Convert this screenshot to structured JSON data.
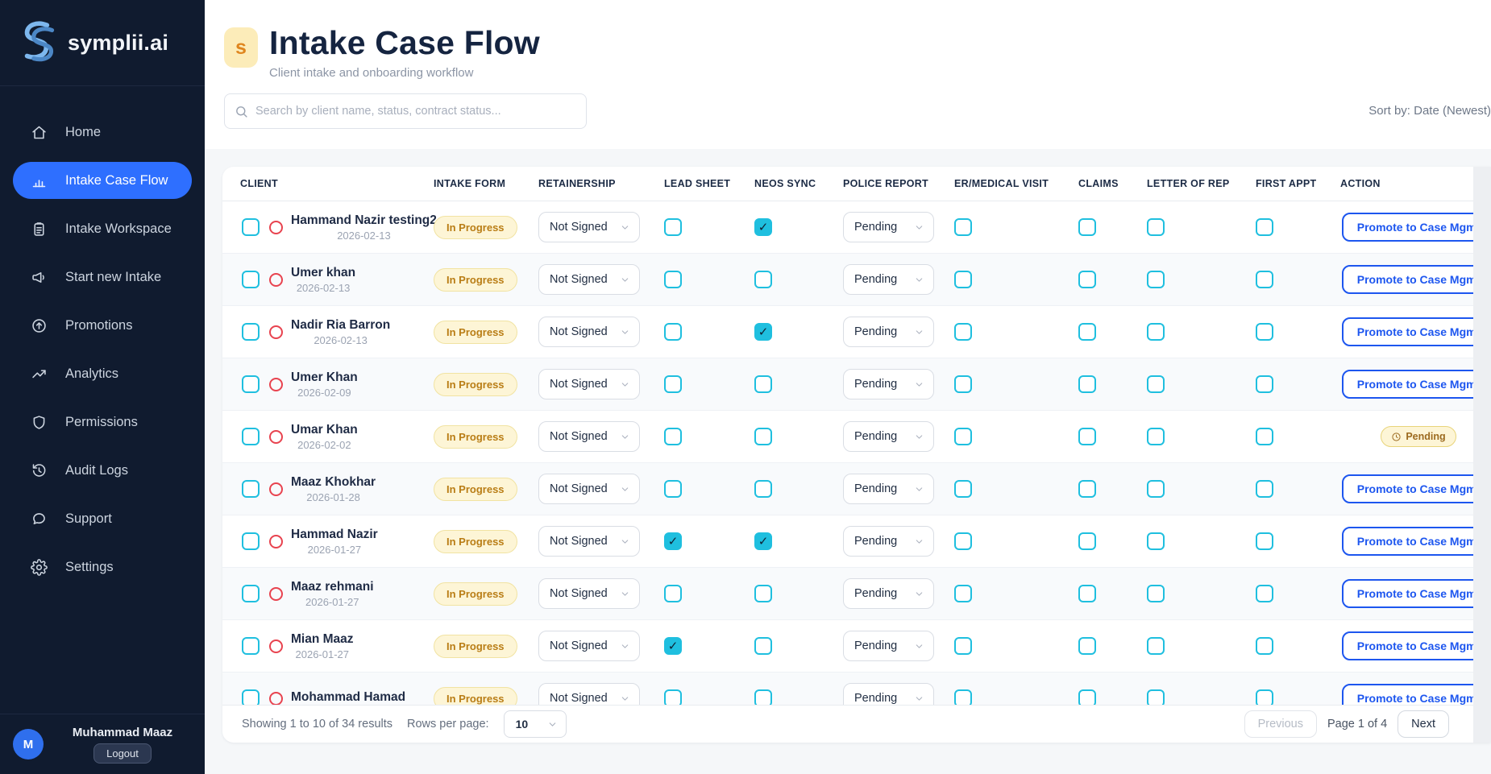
{
  "brand": {
    "name": "symplii.ai"
  },
  "colors": {
    "sidebar_bg": "#101b2f",
    "sidebar_divider": "#1d2940",
    "accent_blue": "#2e6fff",
    "cyan": "#1fbfdf",
    "red_status": "#e8434f",
    "badge_bg": "#fdf5d6",
    "badge_border": "#f1e3a2",
    "badge_text": "#b97d15",
    "button_blue": "#1d56ef",
    "page_gray": "#f5f7f9",
    "title_navy": "#152440"
  },
  "sidebar": {
    "items": [
      {
        "label": "Home",
        "icon": "home",
        "active": false
      },
      {
        "label": "Intake Case Flow",
        "icon": "bar-chart",
        "active": true
      },
      {
        "label": "Intake Workspace",
        "icon": "clipboard",
        "active": false
      },
      {
        "label": "Start new Intake",
        "icon": "megaphone",
        "active": false
      },
      {
        "label": "Promotions",
        "icon": "arrow-up-circle",
        "active": false
      },
      {
        "label": "Analytics",
        "icon": "trending-up",
        "active": false
      },
      {
        "label": "Permissions",
        "icon": "shield",
        "active": false
      },
      {
        "label": "Audit Logs",
        "icon": "history",
        "active": false
      },
      {
        "label": "Support",
        "icon": "chat",
        "active": false
      },
      {
        "label": "Settings",
        "icon": "gear",
        "active": false
      }
    ],
    "user": {
      "initial": "M",
      "name": "Muhammad Maaz",
      "logout_label": "Logout"
    }
  },
  "header": {
    "badge_letter": "s",
    "title": "Intake Case Flow",
    "subtitle": "Client intake and onboarding workflow",
    "search_placeholder": "Search by client name, status, contract status...",
    "sort_label": "Sort by: Date (Newest)"
  },
  "table": {
    "columns": [
      "CLIENT",
      "INTAKE FORM",
      "RETAINERSHIP",
      "LEAD SHEET",
      "NEOS SYNC",
      "POLICE REPORT",
      "ER/MEDICAL VISIT",
      "CLAIMS",
      "LETTER OF REP",
      "FIRST APPT",
      "ACTION"
    ],
    "rows": [
      {
        "name": "Hammand Nazir testing2",
        "date": "2026-02-13",
        "intake_form": "In Progress",
        "retainership": "Not Signed",
        "lead_sheet": false,
        "neos_sync": true,
        "police_report": "Pending",
        "er_medical_visit": false,
        "claims": false,
        "letter_of_rep": false,
        "first_appt": false,
        "action": {
          "type": "button",
          "label": "Promote to Case Mgmt"
        }
      },
      {
        "name": "Umer khan",
        "date": "2026-02-13",
        "intake_form": "In Progress",
        "retainership": "Not Signed",
        "lead_sheet": false,
        "neos_sync": false,
        "police_report": "Pending",
        "er_medical_visit": false,
        "claims": false,
        "letter_of_rep": false,
        "first_appt": false,
        "action": {
          "type": "button",
          "label": "Promote to Case Mgmt"
        }
      },
      {
        "name": "Nadir Ria Barron",
        "date": "2026-02-13",
        "intake_form": "In Progress",
        "retainership": "Not Signed",
        "lead_sheet": false,
        "neos_sync": true,
        "police_report": "Pending",
        "er_medical_visit": false,
        "claims": false,
        "letter_of_rep": false,
        "first_appt": false,
        "action": {
          "type": "button",
          "label": "Promote to Case Mgmt"
        }
      },
      {
        "name": "Umer Khan",
        "date": "2026-02-09",
        "intake_form": "In Progress",
        "retainership": "Not Signed",
        "lead_sheet": false,
        "neos_sync": false,
        "police_report": "Pending",
        "er_medical_visit": false,
        "claims": false,
        "letter_of_rep": false,
        "first_appt": false,
        "action": {
          "type": "button",
          "label": "Promote to Case Mgmt"
        }
      },
      {
        "name": "Umar Khan",
        "date": "2026-02-02",
        "intake_form": "In Progress",
        "retainership": "Not Signed",
        "lead_sheet": false,
        "neos_sync": false,
        "police_report": "Pending",
        "er_medical_visit": false,
        "claims": false,
        "letter_of_rep": false,
        "first_appt": false,
        "action": {
          "type": "badge",
          "label": "Pending"
        }
      },
      {
        "name": "Maaz Khokhar",
        "date": "2026-01-28",
        "intake_form": "In Progress",
        "retainership": "Not Signed",
        "lead_sheet": false,
        "neos_sync": false,
        "police_report": "Pending",
        "er_medical_visit": false,
        "claims": false,
        "letter_of_rep": false,
        "first_appt": false,
        "action": {
          "type": "button",
          "label": "Promote to Case Mgmt"
        }
      },
      {
        "name": "Hammad Nazir",
        "date": "2026-01-27",
        "intake_form": "In Progress",
        "retainership": "Not Signed",
        "lead_sheet": true,
        "neos_sync": true,
        "police_report": "Pending",
        "er_medical_visit": false,
        "claims": false,
        "letter_of_rep": false,
        "first_appt": false,
        "action": {
          "type": "button",
          "label": "Promote to Case Mgmt"
        }
      },
      {
        "name": "Maaz rehmani",
        "date": "2026-01-27",
        "intake_form": "In Progress",
        "retainership": "Not Signed",
        "lead_sheet": false,
        "neos_sync": false,
        "police_report": "Pending",
        "er_medical_visit": false,
        "claims": false,
        "letter_of_rep": false,
        "first_appt": false,
        "action": {
          "type": "button",
          "label": "Promote to Case Mgmt"
        }
      },
      {
        "name": "Mian Maaz",
        "date": "2026-01-27",
        "intake_form": "In Progress",
        "retainership": "Not Signed",
        "lead_sheet": true,
        "neos_sync": false,
        "police_report": "Pending",
        "er_medical_visit": false,
        "claims": false,
        "letter_of_rep": false,
        "first_appt": false,
        "action": {
          "type": "button",
          "label": "Promote to Case Mgmt"
        }
      },
      {
        "name": "Mohammad Hamad",
        "date": "",
        "intake_form": "In Progress",
        "retainership": "Not Signed",
        "lead_sheet": false,
        "neos_sync": false,
        "police_report": "Pending",
        "er_medical_visit": false,
        "claims": false,
        "letter_of_rep": false,
        "first_appt": false,
        "action": {
          "type": "button",
          "label": "Promote to Case Mgmt"
        }
      }
    ]
  },
  "footer": {
    "showing_text": "Showing 1 to 10 of 34 results",
    "rows_per_page_label": "Rows per page:",
    "rows_per_page_value": "10",
    "previous_label": "Previous",
    "page_info": "Page 1 of 4",
    "next_label": "Next"
  }
}
